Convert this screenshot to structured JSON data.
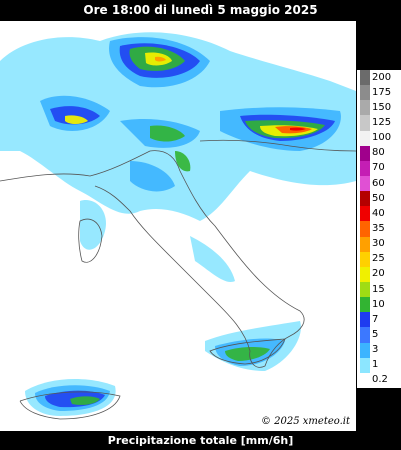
{
  "header": {
    "title": "Ore 18:00 di lunedì 5 maggio 2025"
  },
  "footer": {
    "caption": "Precipitazione totale [mm/6h]"
  },
  "map": {
    "copyright": "© 2025 xmeteo.it"
  },
  "legend": {
    "levels": [
      {
        "label": "200",
        "color": "#6b6b6b"
      },
      {
        "label": "175",
        "color": "#8c8c8c"
      },
      {
        "label": "150",
        "color": "#aaaaaa"
      },
      {
        "label": "125",
        "color": "#c8c8c8"
      },
      {
        "label": "100",
        "color": "#f2f2f2"
      },
      {
        "label": "80",
        "color": "#a0008c"
      },
      {
        "label": "70",
        "color": "#c41eb4"
      },
      {
        "label": "60",
        "color": "#e050d4"
      },
      {
        "label": "50",
        "color": "#b40000"
      },
      {
        "label": "40",
        "color": "#f00000"
      },
      {
        "label": "35",
        "color": "#ff6400"
      },
      {
        "label": "30",
        "color": "#ffa000"
      },
      {
        "label": "25",
        "color": "#ffd000"
      },
      {
        "label": "20",
        "color": "#f0f000"
      },
      {
        "label": "15",
        "color": "#a0dc14"
      },
      {
        "label": "10",
        "color": "#32b432"
      },
      {
        "label": "7",
        "color": "#1e3cf0"
      },
      {
        "label": "5",
        "color": "#3c78ff"
      },
      {
        "label": "3",
        "color": "#3cb4ff"
      },
      {
        "label": "1",
        "color": "#8ce6ff"
      },
      {
        "label": "0.2",
        "color": "#ffffff"
      }
    ]
  }
}
